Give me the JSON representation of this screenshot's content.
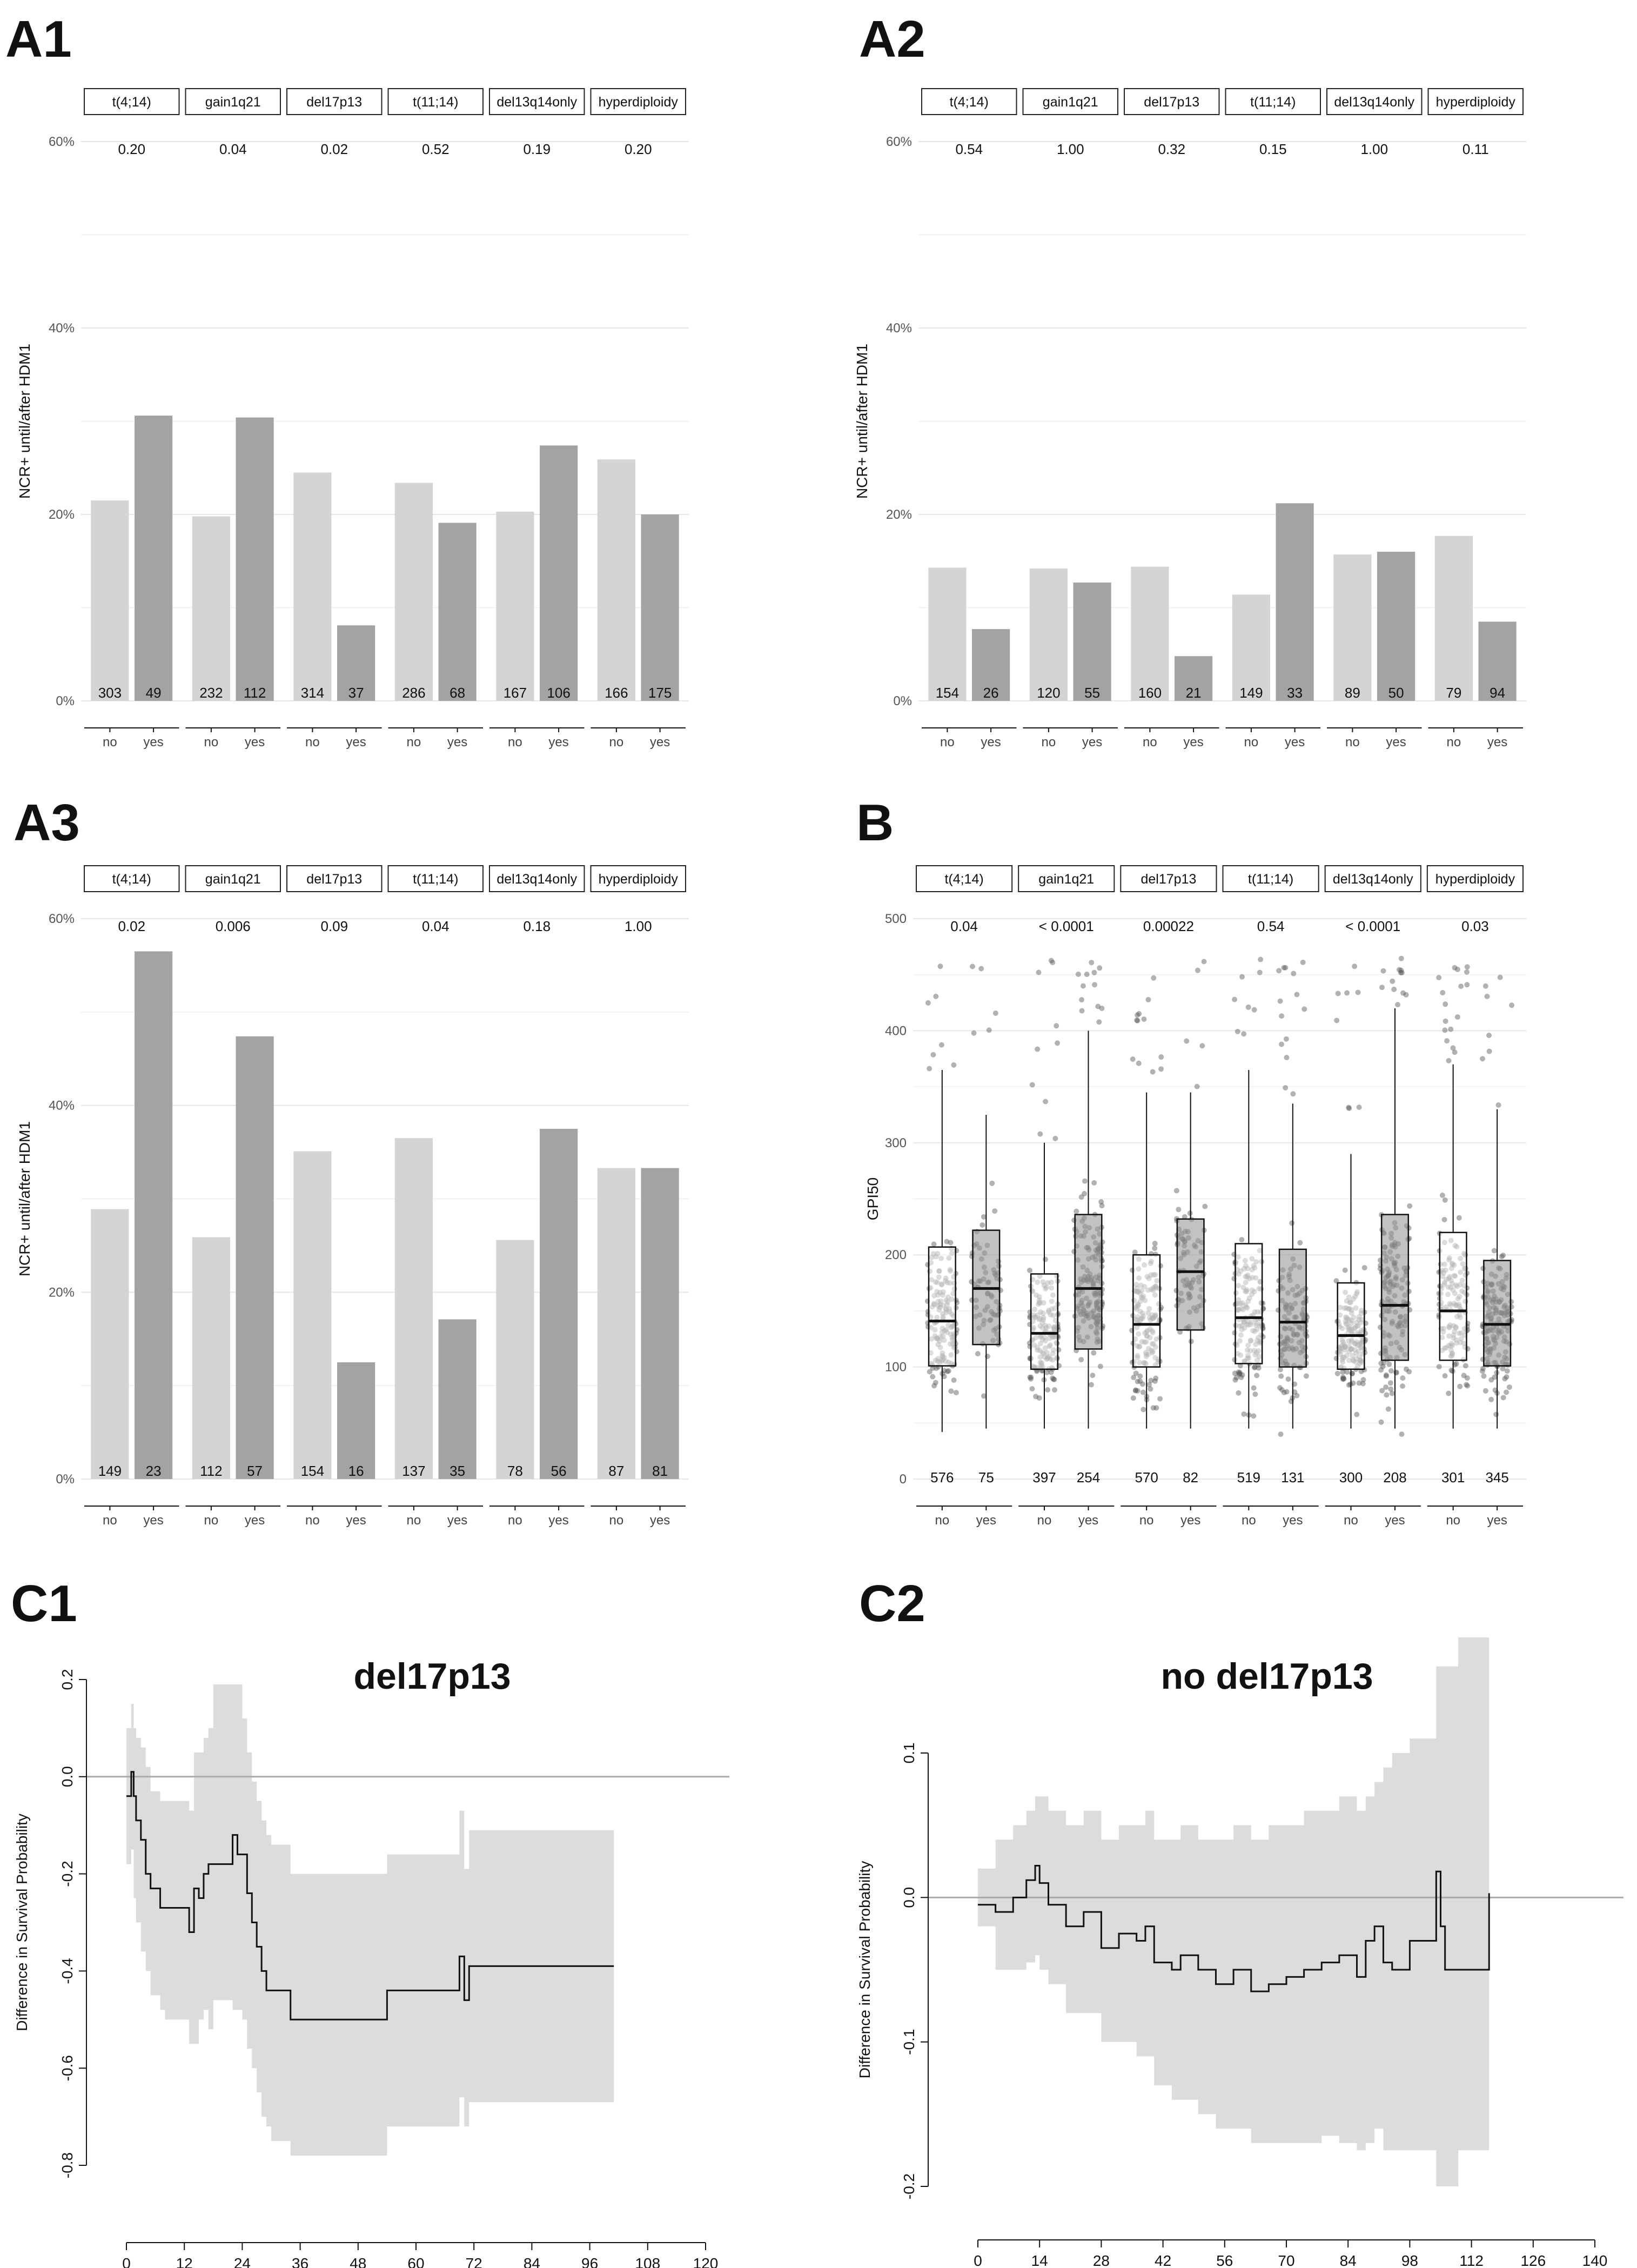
{
  "panels": {
    "A1": "A1",
    "A2": "A2",
    "A3": "A3",
    "B": "B",
    "C1": "C1",
    "C2": "C2"
  },
  "chart_data": [
    {
      "id": "A1",
      "type": "bar",
      "ylabel": "NCR+ until/after HDM1",
      "yticks": [
        "0%",
        "20%",
        "40%",
        "60%"
      ],
      "ylim": [
        0,
        60
      ],
      "facets": [
        "t(4;14)",
        "gain1q21",
        "del17p13",
        "t(11;14)",
        "del13q14only",
        "hyperdiploidy"
      ],
      "categories": [
        "no",
        "yes"
      ],
      "pvalues": [
        "0.20",
        "0.04",
        "0.02",
        "0.52",
        "0.19",
        "0.20"
      ],
      "values": [
        [
          21.5,
          30.6
        ],
        [
          19.8,
          30.4
        ],
        [
          24.5,
          8.1
        ],
        [
          23.4,
          19.1
        ],
        [
          20.3,
          27.4
        ],
        [
          25.9,
          20.0
        ]
      ],
      "counts": [
        [
          "303",
          "49"
        ],
        [
          "232",
          "112"
        ],
        [
          "314",
          "37"
        ],
        [
          "286",
          "68"
        ],
        [
          "167",
          "106"
        ],
        [
          "166",
          "175"
        ]
      ],
      "colors": {
        "no": "#d4d4d4",
        "yes": "#a3a3a3"
      }
    },
    {
      "id": "A2",
      "type": "bar",
      "ylabel": "NCR+ until/after HDM1",
      "yticks": [
        "0%",
        "20%",
        "40%",
        "60%"
      ],
      "ylim": [
        0,
        60
      ],
      "facets": [
        "t(4;14)",
        "gain1q21",
        "del17p13",
        "t(11;14)",
        "del13q14only",
        "hyperdiploidy"
      ],
      "categories": [
        "no",
        "yes"
      ],
      "pvalues": [
        "0.54",
        "1.00",
        "0.32",
        "0.15",
        "1.00",
        "0.11"
      ],
      "values": [
        [
          14.3,
          7.7
        ],
        [
          14.2,
          12.7
        ],
        [
          14.4,
          4.8
        ],
        [
          11.4,
          21.2
        ],
        [
          15.7,
          16.0
        ],
        [
          17.7,
          8.5
        ]
      ],
      "counts": [
        [
          "154",
          "26"
        ],
        [
          "120",
          "55"
        ],
        [
          "160",
          "21"
        ],
        [
          "149",
          "33"
        ],
        [
          "89",
          "50"
        ],
        [
          "79",
          "94"
        ]
      ],
      "colors": {
        "no": "#d4d4d4",
        "yes": "#a3a3a3"
      }
    },
    {
      "id": "A3",
      "type": "bar",
      "ylabel": "NCR+ until/after HDM1",
      "yticks": [
        "0%",
        "20%",
        "40%",
        "60%"
      ],
      "ylim": [
        0,
        60
      ],
      "facets": [
        "t(4;14)",
        "gain1q21",
        "del17p13",
        "t(11;14)",
        "del13q14only",
        "hyperdiploidy"
      ],
      "categories": [
        "no",
        "yes"
      ],
      "pvalues": [
        "0.02",
        "0.006",
        "0.09",
        "0.04",
        "0.18",
        "1.00"
      ],
      "values": [
        [
          28.9,
          56.5
        ],
        [
          25.9,
          47.4
        ],
        [
          35.1,
          12.5
        ],
        [
          36.5,
          17.1
        ],
        [
          25.6,
          37.5
        ],
        [
          33.3,
          33.3
        ]
      ],
      "counts": [
        [
          "149",
          "23"
        ],
        [
          "112",
          "57"
        ],
        [
          "154",
          "16"
        ],
        [
          "137",
          "35"
        ],
        [
          "78",
          "56"
        ],
        [
          "87",
          "81"
        ]
      ],
      "colors": {
        "no": "#d4d4d4",
        "yes": "#a3a3a3"
      }
    },
    {
      "id": "B",
      "type": "box",
      "ylabel": "GPI50",
      "yticks": [
        "0",
        "100",
        "200",
        "300",
        "400",
        "500"
      ],
      "ylim": [
        0,
        500
      ],
      "facets": [
        "t(4;14)",
        "gain1q21",
        "del17p13",
        "t(11;14)",
        "del13q14only",
        "hyperdiploidy"
      ],
      "categories": [
        "no",
        "yes"
      ],
      "pvalues": [
        "0.04",
        "< 0.0001",
        "0.00022",
        "0.54",
        "< 0.0001",
        "0.03"
      ],
      "boxes": [
        [
          {
            "q1": 101,
            "med": 141,
            "q3": 207,
            "wlo": 42,
            "whi": 365
          },
          {
            "q1": 120,
            "med": 170,
            "q3": 222,
            "wlo": 45,
            "whi": 325
          }
        ],
        [
          {
            "q1": 98,
            "med": 130,
            "q3": 183,
            "wlo": 45,
            "whi": 300
          },
          {
            "q1": 116,
            "med": 170,
            "q3": 236,
            "wlo": 45,
            "whi": 400
          }
        ],
        [
          {
            "q1": 100,
            "med": 138,
            "q3": 200,
            "wlo": 45,
            "whi": 345
          },
          {
            "q1": 133,
            "med": 185,
            "q3": 232,
            "wlo": 45,
            "whi": 345
          }
        ],
        [
          {
            "q1": 103,
            "med": 144,
            "q3": 210,
            "wlo": 45,
            "whi": 365
          },
          {
            "q1": 100,
            "med": 140,
            "q3": 205,
            "wlo": 45,
            "whi": 335
          }
        ],
        [
          {
            "q1": 98,
            "med": 128,
            "q3": 175,
            "wlo": 45,
            "whi": 290
          },
          {
            "q1": 106,
            "med": 155,
            "q3": 236,
            "wlo": 45,
            "whi": 420
          }
        ],
        [
          {
            "q1": 106,
            "med": 150,
            "q3": 220,
            "wlo": 45,
            "whi": 370
          },
          {
            "q1": 101,
            "med": 138,
            "q3": 195,
            "wlo": 45,
            "whi": 330
          }
        ]
      ],
      "counts": [
        [
          "576",
          "75"
        ],
        [
          "397",
          "254"
        ],
        [
          "570",
          "82"
        ],
        [
          "519",
          "131"
        ],
        [
          "300",
          "208"
        ],
        [
          "301",
          "345"
        ]
      ]
    },
    {
      "id": "C1",
      "type": "line",
      "title": "del17p13",
      "ylabel": "Difference in Survival Probability",
      "xticks": [
        "0",
        "12",
        "24",
        "36",
        "48",
        "60",
        "72",
        "84",
        "96",
        "108",
        "120"
      ],
      "xlim": [
        0,
        120
      ],
      "yticks": [
        "-0.8",
        "-0.6",
        "-0.4",
        "-0.2",
        "0.0",
        "0.2"
      ],
      "ylim": [
        -0.8,
        0.2
      ],
      "reference_line": 0,
      "x": [
        0,
        1,
        1.5,
        2,
        3,
        4,
        5,
        7,
        8,
        13,
        14,
        15,
        16,
        17,
        18,
        22,
        23,
        24,
        25,
        26,
        27,
        28,
        29,
        30,
        34,
        54,
        69,
        70,
        71,
        101
      ],
      "y": [
        -0.04,
        0.01,
        -0.04,
        -0.09,
        -0.13,
        -0.2,
        -0.23,
        -0.27,
        -0.27,
        -0.32,
        -0.23,
        -0.25,
        -0.2,
        -0.18,
        -0.18,
        -0.12,
        -0.16,
        -0.16,
        -0.24,
        -0.3,
        -0.35,
        -0.4,
        -0.44,
        -0.44,
        -0.5,
        -0.44,
        -0.37,
        -0.46,
        -0.39,
        -0.39
      ],
      "ci_lower": [
        -0.18,
        -0.15,
        -0.25,
        -0.3,
        -0.36,
        -0.4,
        -0.45,
        -0.48,
        -0.5,
        -0.55,
        -0.55,
        -0.5,
        -0.48,
        -0.52,
        -0.46,
        -0.48,
        -0.48,
        -0.5,
        -0.56,
        -0.6,
        -0.65,
        -0.7,
        -0.72,
        -0.75,
        -0.78,
        -0.72,
        -0.66,
        -0.72,
        -0.67,
        -0.67
      ],
      "ci_upper": [
        0.1,
        0.15,
        0.1,
        0.08,
        0.06,
        0.02,
        -0.03,
        -0.05,
        -0.05,
        -0.07,
        0.05,
        0.05,
        0.08,
        0.1,
        0.19,
        0.19,
        0.19,
        0.12,
        0.05,
        -0.01,
        -0.05,
        -0.09,
        -0.12,
        -0.14,
        -0.2,
        -0.16,
        -0.07,
        -0.19,
        -0.11,
        -0.11
      ]
    },
    {
      "id": "C2",
      "type": "line",
      "title": "no del17p13",
      "ylabel": "Difference in Survival Probability",
      "xticks": [
        "0",
        "14",
        "28",
        "42",
        "56",
        "70",
        "84",
        "98",
        "112",
        "126",
        "140"
      ],
      "xlim": [
        0,
        140
      ],
      "yticks": [
        "-0.2",
        "-0.1",
        "0.0",
        "0.1"
      ],
      "ylim": [
        -0.2,
        0.1
      ],
      "reference_line": 0,
      "x": [
        0,
        4,
        8,
        11,
        13,
        14,
        16,
        20,
        24,
        28,
        32,
        36,
        38,
        40,
        44,
        46,
        50,
        54,
        58,
        62,
        66,
        70,
        74,
        78,
        82,
        86,
        88,
        90,
        92,
        94,
        98,
        104,
        105,
        106,
        109,
        116
      ],
      "y": [
        -0.005,
        -0.01,
        0.0,
        0.012,
        0.022,
        0.01,
        -0.005,
        -0.02,
        -0.01,
        -0.035,
        -0.025,
        -0.03,
        -0.02,
        -0.045,
        -0.05,
        -0.04,
        -0.05,
        -0.06,
        -0.05,
        -0.065,
        -0.06,
        -0.055,
        -0.05,
        -0.045,
        -0.04,
        -0.055,
        -0.03,
        -0.02,
        -0.045,
        -0.05,
        -0.03,
        0.018,
        -0.02,
        -0.05,
        -0.05,
        0.003
      ],
      "ci_lower": [
        -0.02,
        -0.05,
        -0.05,
        -0.045,
        -0.04,
        -0.05,
        -0.06,
        -0.08,
        -0.08,
        -0.1,
        -0.1,
        -0.11,
        -0.11,
        -0.13,
        -0.14,
        -0.14,
        -0.15,
        -0.16,
        -0.16,
        -0.17,
        -0.17,
        -0.17,
        -0.17,
        -0.165,
        -0.17,
        -0.175,
        -0.17,
        -0.16,
        -0.175,
        -0.175,
        -0.175,
        -0.2,
        -0.2,
        -0.2,
        -0.175,
        -0.175
      ],
      "ci_upper": [
        0.02,
        0.04,
        0.05,
        0.06,
        0.07,
        0.07,
        0.06,
        0.05,
        0.06,
        0.04,
        0.05,
        0.05,
        0.06,
        0.04,
        0.04,
        0.05,
        0.04,
        0.04,
        0.05,
        0.04,
        0.05,
        0.05,
        0.06,
        0.06,
        0.07,
        0.06,
        0.07,
        0.08,
        0.09,
        0.1,
        0.11,
        0.16,
        0.16,
        0.16,
        0.18,
        0.18
      ]
    }
  ]
}
